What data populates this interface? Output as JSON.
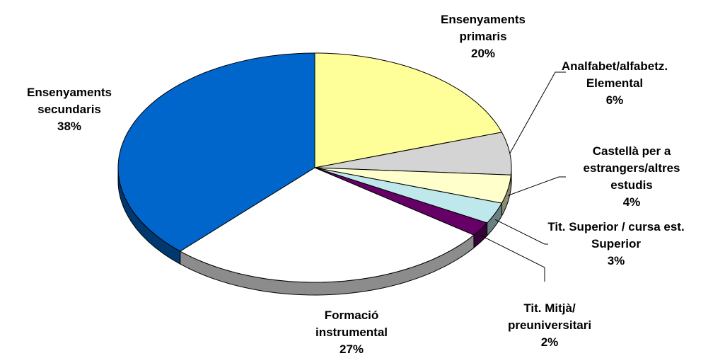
{
  "chart_data": {
    "type": "pie",
    "categories": [
      "Ensenyaments primaris",
      "Analfabet/alfabetz. Elemental",
      "Castellà per a estrangers/altres estudis",
      "Tit. Superior / cursa est. Superior",
      "Tit. Mitjà/ preuniversitari",
      "Formació instrumental",
      "Ensenyaments secundaris"
    ],
    "values": [
      20,
      6,
      4,
      3,
      2,
      27,
      38
    ],
    "value_labels": [
      "20%",
      "6%",
      "4%",
      "3%",
      "2%",
      "27%",
      "38%"
    ],
    "colors": [
      "#ffff99",
      "#d4d4d4",
      "#ffffcc",
      "#bfe8ec",
      "#660066",
      "#ffffff",
      "#0066cc"
    ]
  }
}
